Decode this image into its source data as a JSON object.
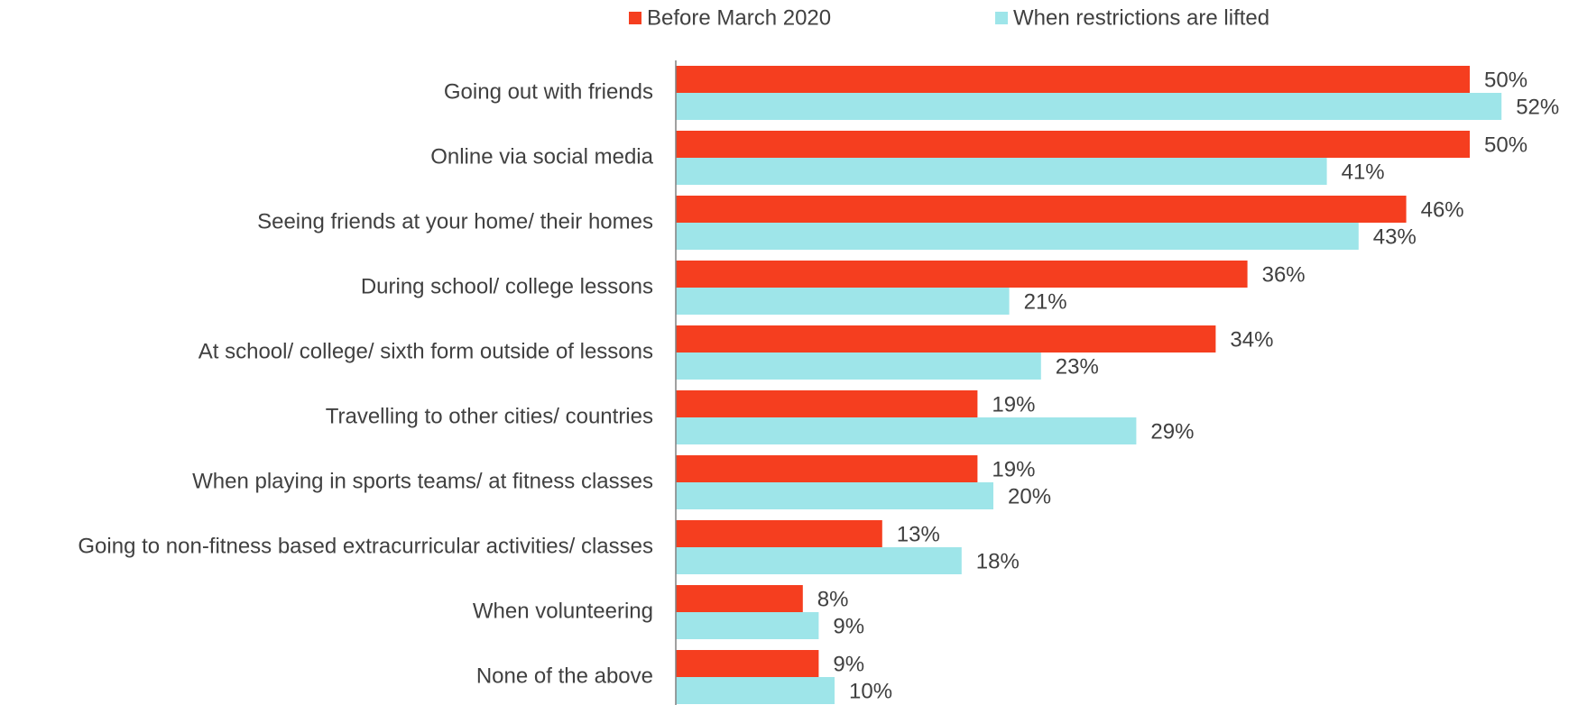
{
  "chart_data": {
    "type": "barh",
    "categories": [
      "Going out with friends",
      "Online via social media",
      "Seeing friends at your home/ their homes",
      "During school/ college lessons",
      "At school/ college/ sixth form outside of lessons",
      "Travelling to other cities/ countries",
      "When playing in sports teams/ at fitness classes",
      "Going to non-fitness based extracurricular activities/ classes",
      "When volunteering",
      "None of the above"
    ],
    "series": [
      {
        "name": "Before March 2020",
        "color": "#f53e1f",
        "values": [
          50,
          50,
          46,
          36,
          34,
          19,
          19,
          13,
          8,
          9
        ],
        "value_labels": [
          "50%",
          "50%",
          "46%",
          "36%",
          "34%",
          "19%",
          "19%",
          "13%",
          "8%",
          "9%"
        ]
      },
      {
        "name": "When restrictions are lifted",
        "color": "#9ee5e9",
        "values": [
          52,
          41,
          43,
          21,
          23,
          29,
          20,
          18,
          9,
          10
        ],
        "value_labels": [
          "52%",
          "41%",
          "43%",
          "21%",
          "23%",
          "29%",
          "20%",
          "18%",
          "9%",
          "10%"
        ]
      }
    ],
    "legend": "top"
  }
}
